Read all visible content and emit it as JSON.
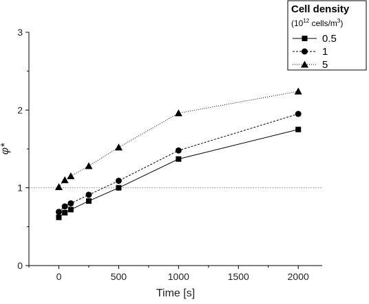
{
  "chart_data": {
    "type": "line",
    "xlabel": "Time [s]",
    "ylabel": "φ*",
    "xlim": [
      -250,
      2200
    ],
    "ylim": [
      0,
      3
    ],
    "xticks": [
      0,
      500,
      1000,
      1500,
      2000
    ],
    "yticks": [
      0,
      1,
      2,
      3
    ],
    "x": [
      0,
      50,
      100,
      250,
      500,
      1000,
      2000
    ],
    "reference_line": {
      "y": 1,
      "style": "dotted",
      "color": "#888888"
    },
    "legend": {
      "title": "Cell density",
      "subtitle_base": "(10",
      "subtitle_sup": "12",
      "subtitle_mid": " cells/m",
      "subtitle_sup2": "3",
      "subtitle_end": ")",
      "placement": "top-right"
    },
    "series": [
      {
        "name": "0.5",
        "marker": "square",
        "dash": "solid",
        "values": [
          0.62,
          0.68,
          0.72,
          0.83,
          1.0,
          1.37,
          1.75
        ]
      },
      {
        "name": "1",
        "marker": "circle",
        "dash": "dashed",
        "values": [
          0.69,
          0.76,
          0.8,
          0.91,
          1.09,
          1.48,
          1.95
        ]
      },
      {
        "name": "5",
        "marker": "triangle",
        "dash": "dotted",
        "values": [
          1.01,
          1.1,
          1.15,
          1.28,
          1.52,
          1.96,
          2.24
        ]
      }
    ]
  }
}
